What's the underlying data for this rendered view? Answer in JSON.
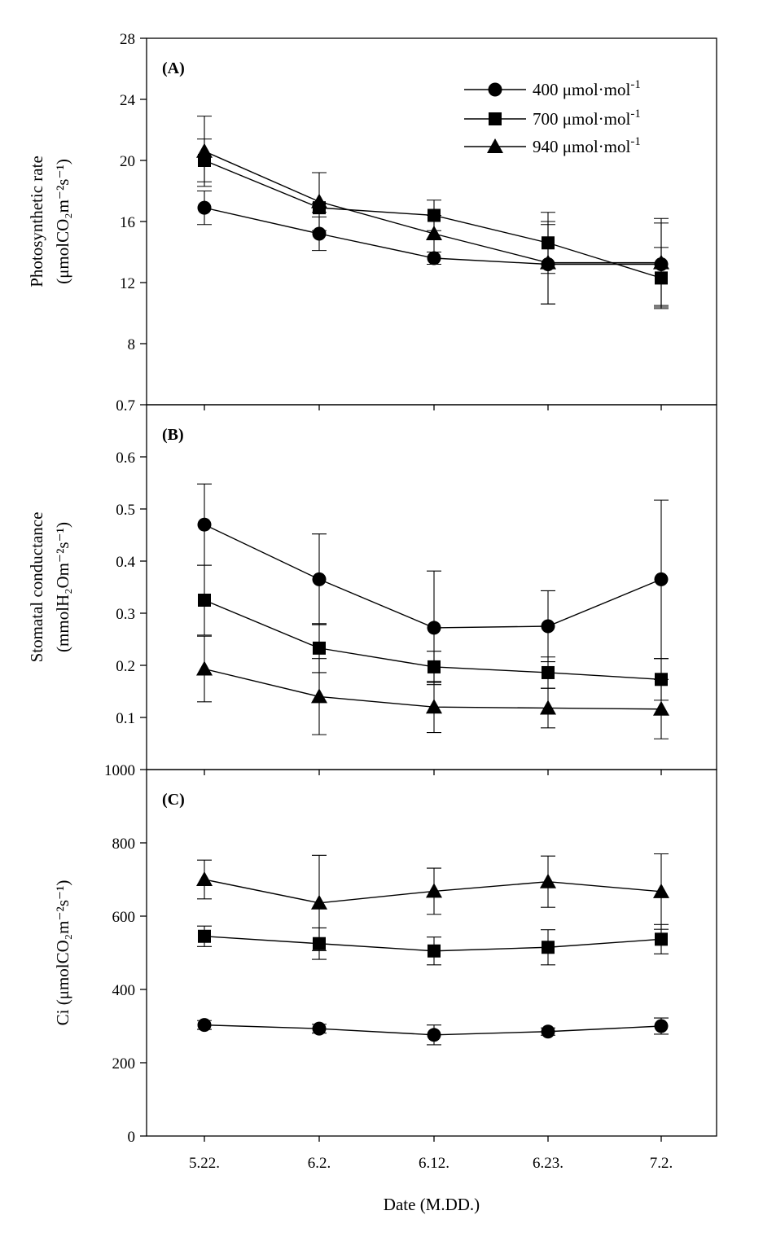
{
  "chart_data": {
    "type": "line",
    "x_categories": [
      "5.22.",
      "6.2.",
      "6.12.",
      "6.23.",
      "7.2."
    ],
    "xlabel": "Date (M.DD.)",
    "legend": {
      "placement": "top-right",
      "entries": [
        {
          "series": "400",
          "label": "400 μmol·mol",
          "superscript": "-1",
          "marker": "circle"
        },
        {
          "series": "700",
          "label": "700 μmol·mol",
          "superscript": "-1",
          "marker": "square"
        },
        {
          "series": "940",
          "label": "940 μmol·mol",
          "superscript": "-1",
          "marker": "triangle"
        }
      ]
    },
    "panels": [
      {
        "label": "(A)",
        "ylabel_line1": "Photosynthetic rate",
        "ylabel_line2": "(μmolCO₂m⁻²s⁻¹)",
        "ylim": [
          4,
          28
        ],
        "yticks": [
          "8",
          "12",
          "16",
          "20",
          "24",
          "28"
        ],
        "series": [
          {
            "name": "400",
            "marker": "circle",
            "values": [
              16.9,
              15.2,
              13.6,
              13.2,
              13.2
            ],
            "errors": [
              1.1,
              1.1,
              0.4,
              2.6,
              2.7
            ]
          },
          {
            "name": "700",
            "marker": "square",
            "values": [
              20.0,
              16.9,
              16.4,
              14.6,
              12.3
            ],
            "errors": [
              1.4,
              0.3,
              1.0,
              2.0,
              2.0
            ]
          },
          {
            "name": "940",
            "marker": "triangle",
            "values": [
              20.6,
              17.3,
              15.2,
              13.3,
              13.3
            ],
            "errors": [
              2.3,
              1.9,
              1.2,
              2.7,
              2.9
            ]
          }
        ]
      },
      {
        "label": "(B)",
        "ylabel_line1": "Stomatal conductance",
        "ylabel_line2": "(mmolH₂Om⁻²s⁻¹)",
        "ylim": [
          0.0,
          0.7
        ],
        "yticks": [
          "0.1",
          "0.2",
          "0.3",
          "0.4",
          "0.5",
          "0.6",
          "0.7"
        ],
        "series": [
          {
            "name": "400",
            "marker": "circle",
            "values": [
              0.47,
              0.365,
              0.272,
              0.275,
              0.365
            ],
            "errors": [
              0.078,
              0.087,
              0.109,
              0.068,
              0.152
            ]
          },
          {
            "name": "700",
            "marker": "square",
            "values": [
              0.325,
              0.233,
              0.197,
              0.186,
              0.173
            ],
            "errors": [
              0.067,
              0.047,
              0.03,
              0.03,
              0.04
            ]
          },
          {
            "name": "940",
            "marker": "triangle",
            "values": [
              0.193,
              0.14,
              0.12,
              0.118,
              0.116
            ],
            "errors": [
              0.063,
              0.073,
              0.049,
              0.038,
              0.057
            ]
          }
        ]
      },
      {
        "label": "(C)",
        "ylabel_line1": "Ci (μmolCO₂m⁻²s⁻¹)",
        "ylabel_line2": "",
        "ylim": [
          0,
          1000
        ],
        "yticks": [
          "0",
          "200",
          "400",
          "600",
          "800",
          "1000"
        ],
        "series": [
          {
            "name": "400",
            "marker": "circle",
            "values": [
              303,
              293,
              276,
              285,
              300
            ],
            "errors": [
              12,
              12,
              27,
              10,
              22
            ]
          },
          {
            "name": "700",
            "marker": "square",
            "values": [
              545,
              525,
              505,
              515,
              537
            ],
            "errors": [
              28,
              43,
              38,
              48,
              40
            ]
          },
          {
            "name": "940",
            "marker": "triangle",
            "values": [
              700,
              636,
              668,
              694,
              667
            ],
            "errors": [
              53,
              130,
              63,
              70,
              103
            ]
          }
        ]
      }
    ]
  }
}
